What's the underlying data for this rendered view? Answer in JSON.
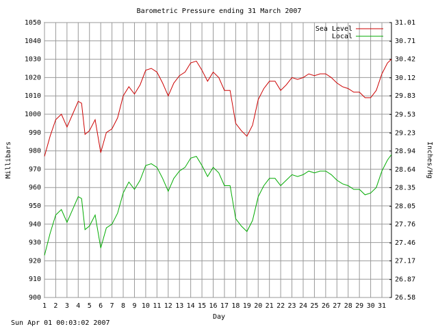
{
  "chart_data": {
    "type": "line",
    "title": "Barometric Pressure ending 31 March 2007",
    "x_label": "Day",
    "y_label": "Millibars",
    "y2_label": "Inches/Hg",
    "footer": "Sun Apr 01 00:03:02 2007",
    "x": [
      1,
      1.5,
      2,
      2.5,
      3,
      3.5,
      4,
      4.3,
      4.6,
      5,
      5.5,
      6,
      6.5,
      7,
      7.5,
      8,
      8.5,
      9,
      9.5,
      10,
      10.5,
      11,
      11.5,
      12,
      12.5,
      13,
      13.5,
      14,
      14.5,
      15,
      15.5,
      16,
      16.5,
      17,
      17.5,
      18,
      18.5,
      19,
      19.5,
      20,
      20.5,
      21,
      21.5,
      22,
      22.5,
      23,
      23.5,
      24,
      24.5,
      25,
      25.5,
      26,
      26.5,
      27,
      27.5,
      28,
      28.5,
      29,
      29.5,
      30,
      30.5,
      31,
      31.5,
      31.85
    ],
    "series": [
      {
        "name": "Sea Level",
        "color": "#cc0000",
        "values": [
          977,
          988,
          997,
          1000,
          993,
          1000,
          1007,
          1006,
          989,
          991,
          997,
          979,
          990,
          992,
          998,
          1010,
          1015,
          1011,
          1016,
          1024,
          1025,
          1023,
          1017,
          1010,
          1017,
          1021,
          1023,
          1028,
          1029,
          1024,
          1018,
          1023,
          1020,
          1013,
          1013,
          995,
          991,
          988,
          994,
          1008,
          1014,
          1018,
          1018,
          1013,
          1016,
          1020,
          1019,
          1020,
          1022,
          1021,
          1022,
          1022,
          1020,
          1017,
          1015,
          1014,
          1012,
          1012,
          1009,
          1009,
          1013,
          1022,
          1028,
          1030
        ]
      },
      {
        "name": "Local",
        "color": "#00aa00",
        "values": [
          923,
          935,
          945,
          948,
          941,
          948,
          955,
          954,
          937,
          939,
          945,
          927,
          938,
          940,
          946,
          957,
          963,
          959,
          964,
          972,
          973,
          971,
          965,
          958,
          965,
          969,
          971,
          976,
          977,
          972,
          966,
          971,
          968,
          961,
          961,
          943,
          939,
          936,
          942,
          955,
          961,
          965,
          965,
          961,
          964,
          967,
          966,
          967,
          969,
          968,
          969,
          969,
          967,
          964,
          962,
          961,
          959,
          959,
          956,
          957,
          960,
          969,
          975,
          978
        ]
      }
    ],
    "xlim": [
      1,
      31.85
    ],
    "xticks": [
      1,
      2,
      3,
      4,
      5,
      6,
      7,
      8,
      9,
      10,
      11,
      12,
      13,
      14,
      15,
      16,
      17,
      18,
      19,
      20,
      21,
      22,
      23,
      24,
      25,
      26,
      27,
      28,
      29,
      30,
      31
    ],
    "ylim": [
      900,
      1050
    ],
    "yticks": [
      900,
      910,
      920,
      930,
      940,
      950,
      960,
      970,
      980,
      990,
      1000,
      1010,
      1020,
      1030,
      1040,
      1050
    ],
    "y2lim": [
      26.58,
      31.01
    ],
    "y2ticks": [
      26.58,
      26.87,
      27.17,
      27.46,
      27.76,
      28.05,
      28.35,
      28.64,
      28.94,
      29.23,
      29.53,
      29.83,
      30.12,
      30.42,
      30.71,
      31.01
    ],
    "grid": true,
    "legend": "top-right"
  }
}
